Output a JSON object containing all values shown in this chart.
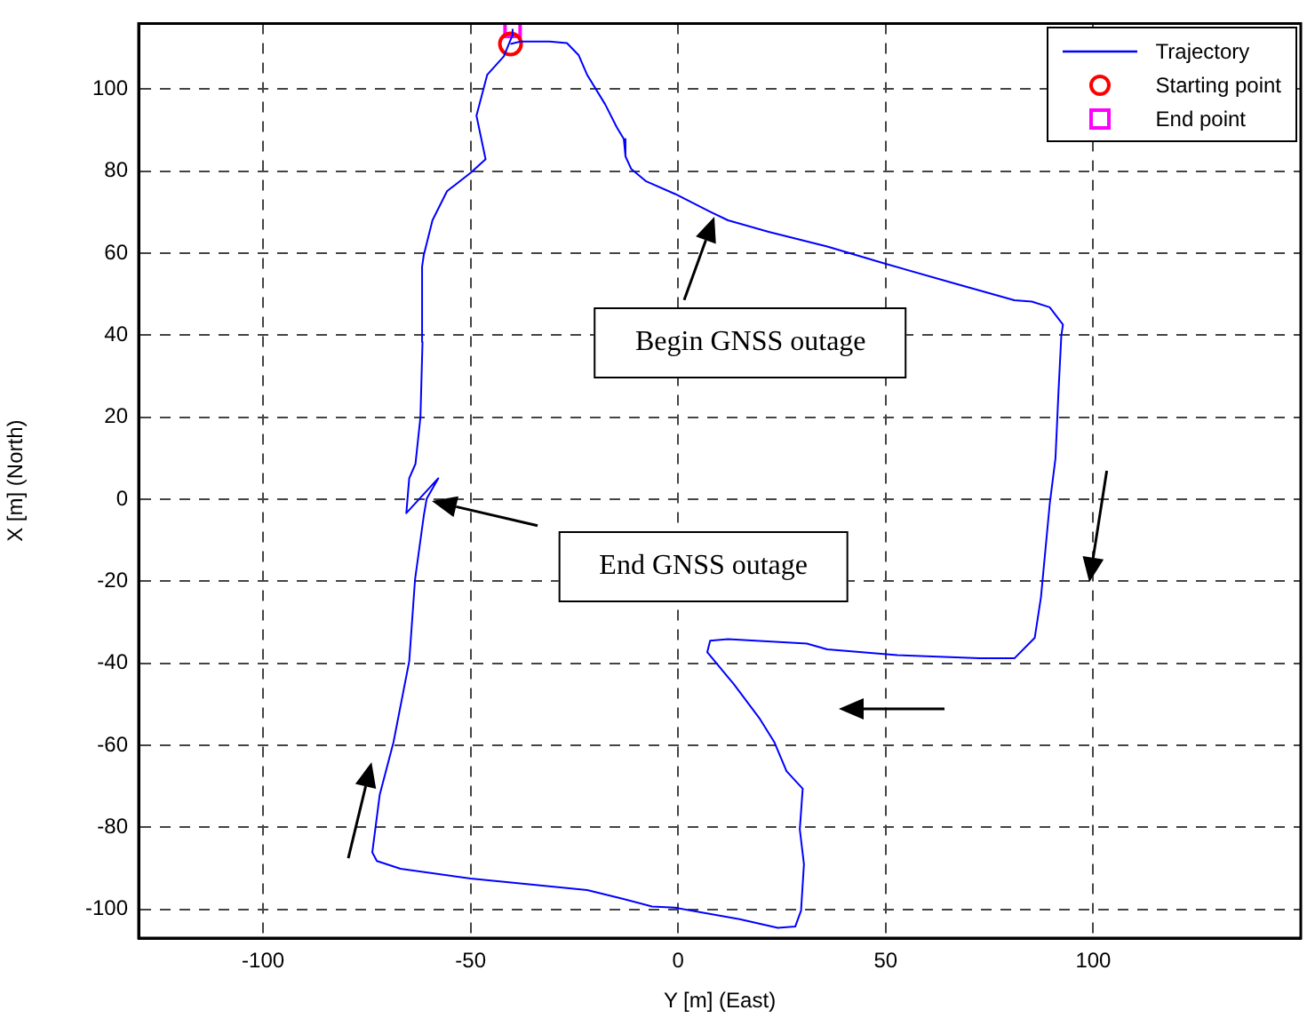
{
  "chart_data": {
    "type": "line",
    "xlabel": "Y [m] (East)",
    "ylabel": "X [m] (North)",
    "xlim": [
      -130,
      150
    ],
    "ylim": [
      -107,
      116
    ],
    "xticks": [
      -100,
      -50,
      0,
      50,
      100
    ],
    "yticks": [
      -100,
      -80,
      -60,
      -40,
      -20,
      0,
      20,
      40,
      60,
      80,
      100
    ],
    "grid": true,
    "legend": "top right",
    "series": [
      {
        "name": "Trajectory",
        "color": "#0000ff",
        "marker": "none",
        "x": [
          -40.4,
          -38,
          -31,
          -26.8,
          -24,
          -21.9,
          -17.6,
          -14.8,
          -13.1,
          -12.7,
          -11.3,
          -7.7,
          -0.7,
          7.7,
          12,
          21.8,
          35.9,
          50,
          66.9,
          81,
          85.2,
          89.5,
          92.7,
          92.3,
          91.6,
          90.9,
          89.5,
          87.4,
          85.9,
          81,
          72.6,
          52.8,
          35.9,
          31,
          12,
          7.7,
          7,
          13.4,
          19.7,
          23.2,
          26.1,
          30,
          29.3,
          30.3,
          29.6,
          28.2,
          24,
          14.8,
          -0.7,
          -6.3,
          -13.4,
          -21.9,
          -35.9,
          -50,
          -66.9,
          -72.6,
          -73.7,
          -71.9,
          -68.6,
          -64.8,
          -63.4,
          -61.3,
          -60.6,
          -57.8,
          -65.5,
          -64.8,
          -63.3,
          -62.1,
          -61.6,
          -61.7,
          -61.3,
          -59.2,
          -55.7,
          -50,
          -46.4,
          -48.6,
          -46,
          -42,
          -40,
          -39.9
        ],
        "values": [
          111,
          111.6,
          111.6,
          111.2,
          108.3,
          103.4,
          96.3,
          90.7,
          87.8,
          83.6,
          80.5,
          77.5,
          74.4,
          70.1,
          68,
          65.2,
          61.6,
          57.4,
          52.5,
          48.5,
          48.2,
          46.8,
          42.6,
          39.8,
          25.6,
          10,
          -1.3,
          -23.9,
          -33.8,
          -38.8,
          -38.8,
          -38,
          -36.6,
          -35.2,
          -34.1,
          -34.5,
          -37.3,
          -45.1,
          -53.6,
          -59.3,
          -66.3,
          -70.6,
          -80.5,
          -89,
          -100.3,
          -104.2,
          -104.5,
          -102.4,
          -99.6,
          -99.3,
          -97.4,
          -95.3,
          -93.9,
          -92.5,
          -90.1,
          -88.2,
          -86.1,
          -72,
          -59.3,
          -39.5,
          -19.6,
          -4.1,
          0.1,
          5.1,
          -3.4,
          5.1,
          8.6,
          20,
          38.3,
          56.7,
          59.5,
          68,
          75.1,
          79.6,
          82.9,
          93.5,
          103.5,
          108,
          113,
          114.7
        ]
      },
      {
        "name": "Starting point",
        "type": "scatter",
        "color": "#ff0000",
        "marker": "circle",
        "x": [
          -40.4
        ],
        "values": [
          111
        ]
      },
      {
        "name": "End point",
        "type": "scatter",
        "color": "#ff00ff",
        "marker": "square",
        "x": [
          -39.9
        ],
        "values": [
          114.7
        ]
      }
    ],
    "annotations": [
      "Begin GNSS outage",
      "End GNSS outage"
    ]
  }
}
